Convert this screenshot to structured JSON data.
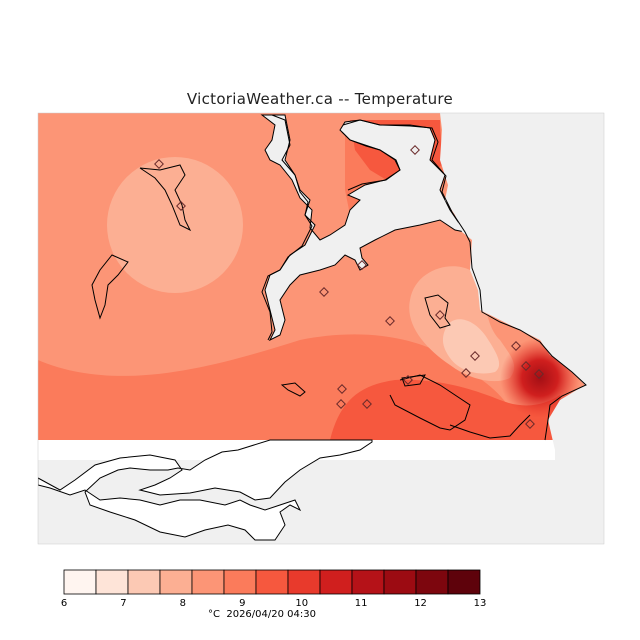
{
  "title": "VictoriaWeather.ca -- Temperature",
  "timestamp": "°C  2026/04/20 04:30",
  "legend": {
    "ticks": [
      "6",
      "7",
      "8",
      "9",
      "10",
      "11",
      "12",
      "13"
    ],
    "colors": [
      "#fff5f0",
      "#fee4d8",
      "#fcc9b4",
      "#fcaf93",
      "#fc9576",
      "#fb7b5b",
      "#f6583e",
      "#e83a2c",
      "#d01f1e",
      "#b51218",
      "#9c0b12",
      "#7d060e",
      "#5e020b"
    ]
  },
  "colors": {
    "background_gray": "#f0f0f0",
    "coast_line": "#000000",
    "station_marker": "#6a2a2a"
  },
  "stations_count_label": ""
}
